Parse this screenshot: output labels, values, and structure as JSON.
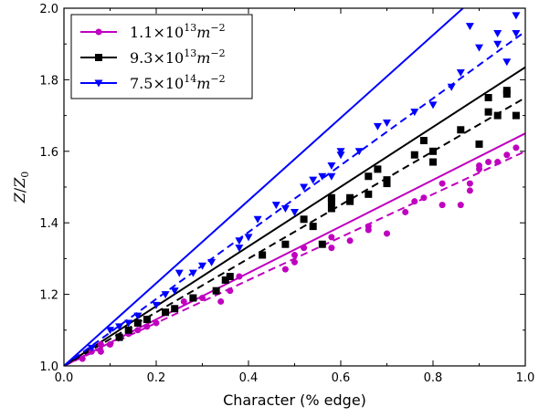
{
  "chart_data": {
    "type": "scatter",
    "xlabel": "Character (% edge)",
    "ylabel": "Z/Z0",
    "xlim": [
      0.0,
      1.0
    ],
    "ylim": [
      1.0,
      2.0
    ],
    "xticks": [
      "0.0",
      "0.2",
      "0.4",
      "0.6",
      "0.8",
      "1.0"
    ],
    "yticks": [
      "1.0",
      "1.2",
      "1.4",
      "1.6",
      "1.8",
      "2.0"
    ],
    "legend_position": "top-left",
    "series": [
      {
        "name": "1.1×10^13 m^-2",
        "legend_base": "1.1×10",
        "legend_exp": "13",
        "legend_unit": "m",
        "legend_unit_exp": "−2",
        "color": "#bf00bf",
        "marker": "circle",
        "solid_fit": [
          [
            0.0,
            1.0
          ],
          [
            1.0,
            1.65
          ]
        ],
        "dashed_fit": [
          [
            0.0,
            1.0
          ],
          [
            1.0,
            1.6
          ]
        ],
        "points": [
          [
            0.04,
            1.02
          ],
          [
            0.06,
            1.04
          ],
          [
            0.08,
            1.04
          ],
          [
            0.08,
            1.06
          ],
          [
            0.1,
            1.06
          ],
          [
            0.12,
            1.08
          ],
          [
            0.14,
            1.09
          ],
          [
            0.16,
            1.1
          ],
          [
            0.18,
            1.11
          ],
          [
            0.2,
            1.12
          ],
          [
            0.22,
            1.15
          ],
          [
            0.24,
            1.16
          ],
          [
            0.26,
            1.18
          ],
          [
            0.28,
            1.19
          ],
          [
            0.3,
            1.19
          ],
          [
            0.34,
            1.18
          ],
          [
            0.36,
            1.21
          ],
          [
            0.38,
            1.25
          ],
          [
            0.48,
            1.27
          ],
          [
            0.5,
            1.29
          ],
          [
            0.5,
            1.31
          ],
          [
            0.52,
            1.33
          ],
          [
            0.58,
            1.33
          ],
          [
            0.58,
            1.36
          ],
          [
            0.62,
            1.35
          ],
          [
            0.66,
            1.38
          ],
          [
            0.66,
            1.39
          ],
          [
            0.7,
            1.37
          ],
          [
            0.74,
            1.43
          ],
          [
            0.76,
            1.46
          ],
          [
            0.78,
            1.47
          ],
          [
            0.82,
            1.45
          ],
          [
            0.82,
            1.51
          ],
          [
            0.86,
            1.45
          ],
          [
            0.88,
            1.49
          ],
          [
            0.88,
            1.51
          ],
          [
            0.9,
            1.55
          ],
          [
            0.9,
            1.56
          ],
          [
            0.92,
            1.57
          ],
          [
            0.94,
            1.57
          ],
          [
            0.96,
            1.59
          ],
          [
            0.98,
            1.61
          ]
        ]
      },
      {
        "name": "9.3×10^13 m^-2",
        "legend_base": "9.3×10",
        "legend_exp": "13",
        "legend_unit": "m",
        "legend_unit_exp": "−2",
        "color": "#000000",
        "marker": "square",
        "solid_fit": [
          [
            0.0,
            1.0
          ],
          [
            1.0,
            1.835
          ]
        ],
        "dashed_fit": [
          [
            0.0,
            1.0
          ],
          [
            1.0,
            1.75
          ]
        ],
        "points": [
          [
            0.12,
            1.08
          ],
          [
            0.14,
            1.1
          ],
          [
            0.16,
            1.12
          ],
          [
            0.18,
            1.13
          ],
          [
            0.22,
            1.15
          ],
          [
            0.24,
            1.16
          ],
          [
            0.28,
            1.19
          ],
          [
            0.33,
            1.21
          ],
          [
            0.35,
            1.24
          ],
          [
            0.36,
            1.25
          ],
          [
            0.43,
            1.31
          ],
          [
            0.48,
            1.34
          ],
          [
            0.52,
            1.41
          ],
          [
            0.54,
            1.39
          ],
          [
            0.56,
            1.34
          ],
          [
            0.58,
            1.44
          ],
          [
            0.58,
            1.46
          ],
          [
            0.58,
            1.47
          ],
          [
            0.62,
            1.46
          ],
          [
            0.62,
            1.47
          ],
          [
            0.66,
            1.48
          ],
          [
            0.66,
            1.53
          ],
          [
            0.68,
            1.55
          ],
          [
            0.7,
            1.51
          ],
          [
            0.7,
            1.52
          ],
          [
            0.76,
            1.59
          ],
          [
            0.78,
            1.63
          ],
          [
            0.8,
            1.57
          ],
          [
            0.8,
            1.6
          ],
          [
            0.86,
            1.66
          ],
          [
            0.9,
            1.62
          ],
          [
            0.92,
            1.71
          ],
          [
            0.92,
            1.75
          ],
          [
            0.94,
            1.7
          ],
          [
            0.96,
            1.76
          ],
          [
            0.96,
            1.77
          ],
          [
            0.98,
            1.7
          ]
        ]
      },
      {
        "name": "7.5×10^14 m^-2",
        "legend_base": "7.5×10",
        "legend_exp": "14",
        "legend_unit": "m",
        "legend_unit_exp": "−2",
        "color": "#0000ff",
        "marker": "triangle-down",
        "solid_fit": [
          [
            0.0,
            1.0
          ],
          [
            0.865,
            2.0
          ]
        ],
        "dashed_fit": [
          [
            0.0,
            1.0
          ],
          [
            1.0,
            1.935
          ]
        ],
        "points": [
          [
            0.06,
            1.05
          ],
          [
            0.1,
            1.1
          ],
          [
            0.12,
            1.11
          ],
          [
            0.14,
            1.12
          ],
          [
            0.16,
            1.14
          ],
          [
            0.2,
            1.17
          ],
          [
            0.22,
            1.2
          ],
          [
            0.24,
            1.21
          ],
          [
            0.25,
            1.26
          ],
          [
            0.28,
            1.26
          ],
          [
            0.3,
            1.28
          ],
          [
            0.32,
            1.29
          ],
          [
            0.38,
            1.33
          ],
          [
            0.38,
            1.35
          ],
          [
            0.4,
            1.36
          ],
          [
            0.42,
            1.41
          ],
          [
            0.46,
            1.45
          ],
          [
            0.48,
            1.44
          ],
          [
            0.5,
            1.43
          ],
          [
            0.52,
            1.5
          ],
          [
            0.54,
            1.52
          ],
          [
            0.56,
            1.53
          ],
          [
            0.58,
            1.53
          ],
          [
            0.58,
            1.56
          ],
          [
            0.6,
            1.59
          ],
          [
            0.6,
            1.6
          ],
          [
            0.64,
            1.6
          ],
          [
            0.68,
            1.67
          ],
          [
            0.7,
            1.68
          ],
          [
            0.76,
            1.71
          ],
          [
            0.8,
            1.73
          ],
          [
            0.84,
            1.78
          ],
          [
            0.86,
            1.82
          ],
          [
            0.88,
            1.95
          ],
          [
            0.9,
            1.89
          ],
          [
            0.94,
            1.9
          ],
          [
            0.94,
            1.93
          ],
          [
            0.96,
            1.85
          ],
          [
            0.98,
            1.93
          ],
          [
            0.98,
            1.98
          ]
        ]
      }
    ]
  }
}
